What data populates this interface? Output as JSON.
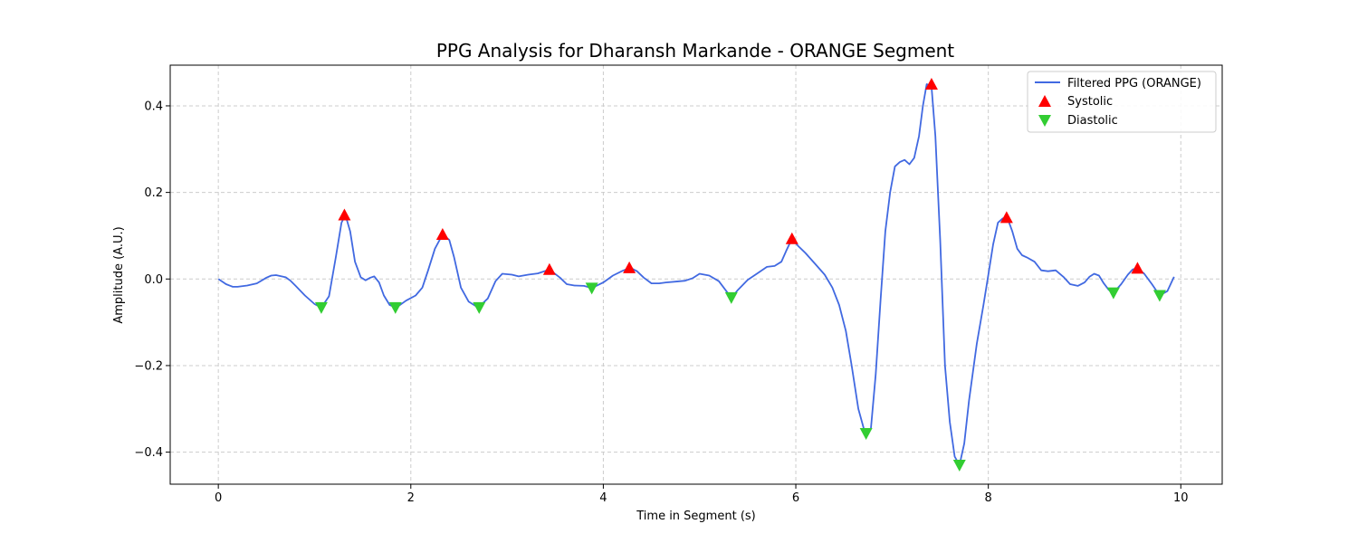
{
  "chart_data": {
    "type": "line",
    "title": "PPG Analysis for Dharansh Markande - ORANGE Segment",
    "xlabel": "Time in Segment (s)",
    "ylabel": "Amplitude (A.U.)",
    "xlim": [
      -0.5,
      10.43
    ],
    "ylim": [
      -0.474,
      0.494
    ],
    "xticks": [
      0,
      2,
      4,
      6,
      8,
      10
    ],
    "xtick_labels": [
      "0",
      "2",
      "4",
      "6",
      "8",
      "10"
    ],
    "yticks": [
      -0.4,
      -0.2,
      0.0,
      0.2,
      0.4
    ],
    "ytick_labels": [
      "−0.4",
      "−0.2",
      "0.0",
      "0.2",
      "0.4"
    ],
    "grid": true,
    "legend_position": "top-right",
    "colors": {
      "line": "#4169e1",
      "systolic": "#ff0000",
      "diastolic": "#32cd32"
    },
    "series": [
      {
        "name": "Filtered PPG (ORANGE)",
        "kind": "line",
        "x": [
          0,
          0.08,
          0.15,
          0.2,
          0.3,
          0.4,
          0.5,
          0.55,
          0.6,
          0.7,
          0.75,
          0.8,
          0.9,
          1.0,
          1.07,
          1.15,
          1.22,
          1.28,
          1.32,
          1.37,
          1.42,
          1.48,
          1.53,
          1.58,
          1.62,
          1.67,
          1.72,
          1.78,
          1.85,
          1.95,
          2.05,
          2.12,
          2.18,
          2.25,
          2.33,
          2.4,
          2.45,
          2.52,
          2.6,
          2.7,
          2.8,
          2.88,
          2.95,
          3.05,
          3.12,
          3.22,
          3.32,
          3.44,
          3.55,
          3.62,
          3.7,
          3.8,
          3.88,
          4.0,
          4.1,
          4.2,
          4.28,
          4.35,
          4.42,
          4.5,
          4.58,
          4.65,
          4.75,
          4.85,
          4.93,
          5.0,
          5.1,
          5.2,
          5.33,
          5.4,
          5.5,
          5.6,
          5.7,
          5.78,
          5.85,
          5.9,
          5.96,
          6.03,
          6.1,
          6.2,
          6.3,
          6.38,
          6.45,
          6.52,
          6.58,
          6.65,
          6.72,
          6.78,
          6.83,
          6.88,
          6.93,
          6.98,
          7.03,
          7.08,
          7.13,
          7.18,
          7.23,
          7.28,
          7.32,
          7.36,
          7.41,
          7.45,
          7.5,
          7.55,
          7.6,
          7.65,
          7.7,
          7.75,
          7.8,
          7.88,
          7.95,
          8.0,
          8.05,
          8.1,
          8.15,
          8.2,
          8.25,
          8.3,
          8.35,
          8.4,
          8.48,
          8.55,
          8.62,
          8.7,
          8.78,
          8.85,
          8.93,
          9.0,
          9.05,
          9.1,
          9.15,
          9.2,
          9.25,
          9.3,
          9.38,
          9.45,
          9.5,
          9.55,
          9.62,
          9.7,
          9.78,
          9.86,
          9.93
        ],
        "y": [
          0.0,
          -0.012,
          -0.018,
          -0.018,
          -0.015,
          -0.01,
          0.003,
          0.008,
          0.009,
          0.004,
          -0.004,
          -0.015,
          -0.038,
          -0.058,
          -0.066,
          -0.04,
          0.05,
          0.13,
          0.148,
          0.11,
          0.04,
          0.004,
          -0.003,
          0.003,
          0.006,
          -0.008,
          -0.038,
          -0.06,
          -0.066,
          -0.05,
          -0.038,
          -0.02,
          0.02,
          0.07,
          0.103,
          0.09,
          0.05,
          -0.02,
          -0.052,
          -0.066,
          -0.045,
          -0.005,
          0.012,
          0.01,
          0.006,
          0.01,
          0.013,
          0.022,
          0.003,
          -0.012,
          -0.015,
          -0.016,
          -0.021,
          -0.008,
          0.008,
          0.019,
          0.026,
          0.018,
          0.003,
          -0.01,
          -0.01,
          -0.008,
          -0.006,
          -0.004,
          0.002,
          0.012,
          0.008,
          -0.005,
          -0.043,
          -0.025,
          -0.002,
          0.013,
          0.028,
          0.03,
          0.04,
          0.065,
          0.093,
          0.075,
          0.06,
          0.035,
          0.01,
          -0.02,
          -0.06,
          -0.12,
          -0.2,
          -0.3,
          -0.357,
          -0.345,
          -0.22,
          -0.05,
          0.11,
          0.2,
          0.26,
          0.27,
          0.275,
          0.265,
          0.28,
          0.33,
          0.4,
          0.45,
          0.445,
          0.33,
          0.09,
          -0.2,
          -0.33,
          -0.41,
          -0.43,
          -0.38,
          -0.28,
          -0.15,
          -0.06,
          0.01,
          0.08,
          0.13,
          0.14,
          0.14,
          0.11,
          0.07,
          0.055,
          0.05,
          0.04,
          0.02,
          0.018,
          0.02,
          0.005,
          -0.012,
          -0.016,
          -0.008,
          0.005,
          0.012,
          0.008,
          -0.01,
          -0.025,
          -0.032,
          -0.012,
          0.01,
          0.022,
          0.025,
          0.012,
          -0.012,
          -0.038,
          -0.028,
          0.005
        ]
      },
      {
        "name": "Systolic",
        "kind": "marker",
        "marker": "triangle-up",
        "x": [
          1.31,
          2.33,
          3.44,
          4.27,
          5.96,
          7.41,
          8.19,
          9.55
        ],
        "y": [
          0.148,
          0.103,
          0.022,
          0.026,
          0.093,
          0.45,
          0.142,
          0.025
        ]
      },
      {
        "name": "Diastolic",
        "kind": "marker",
        "marker": "triangle-down",
        "x": [
          1.07,
          1.84,
          2.71,
          3.88,
          5.33,
          6.73,
          7.7,
          9.3,
          9.78
        ],
        "y": [
          -0.066,
          -0.066,
          -0.066,
          -0.021,
          -0.043,
          -0.357,
          -0.43,
          -0.032,
          -0.038
        ]
      }
    ]
  }
}
